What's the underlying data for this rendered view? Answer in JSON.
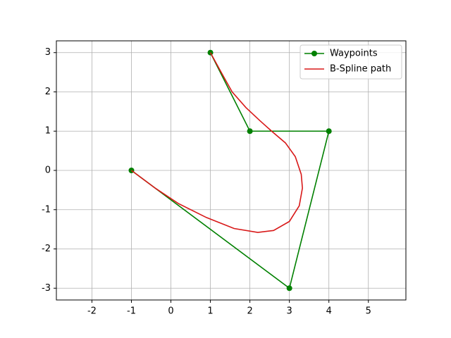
{
  "chart_data": {
    "type": "line",
    "series": [
      {
        "name": "Waypoints",
        "color": "#008000",
        "marker": "o",
        "x": [
          1,
          2,
          4,
          3,
          -1
        ],
        "values": [
          3,
          1,
          1,
          -3,
          0
        ]
      },
      {
        "name": "B-Spline path",
        "color": "#d81818",
        "x": [
          1,
          1.3,
          1.55,
          1.9,
          2.25,
          2.55,
          2.9,
          3.15,
          3.3,
          3.33,
          3.25,
          3,
          2.6,
          2.2,
          1.6,
          0.9,
          0.2,
          -0.4,
          -1
        ],
        "values": [
          3,
          2.45,
          2,
          1.6,
          1.27,
          1,
          0.7,
          0.35,
          -0.1,
          -0.45,
          -0.9,
          -1.3,
          -1.53,
          -1.58,
          -1.48,
          -1.2,
          -0.85,
          -0.45,
          0
        ]
      }
    ],
    "xlim": [
      -2.9,
      5.95
    ],
    "xticks": [
      -2,
      -1,
      0,
      1,
      2,
      3,
      4,
      5
    ],
    "ylim": [
      -3.3,
      3.3
    ],
    "yticks": [
      -3,
      -2,
      -1,
      0,
      1,
      2,
      3
    ],
    "grid": true,
    "legend": "upper right"
  }
}
